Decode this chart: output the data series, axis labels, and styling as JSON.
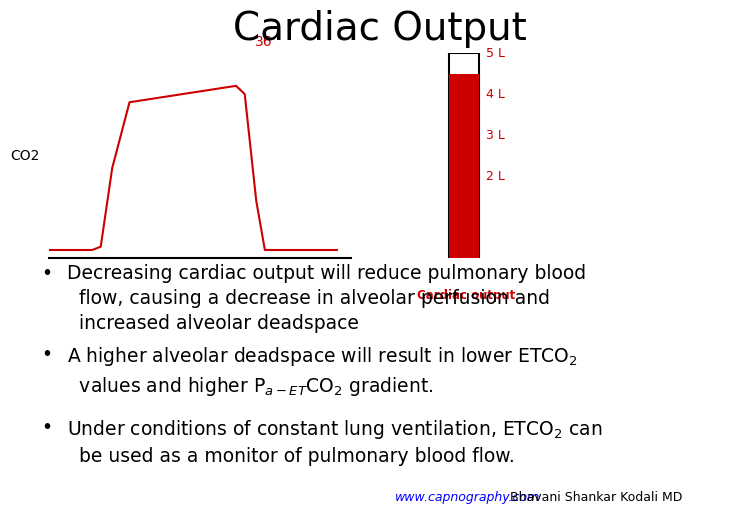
{
  "title": "Cardiac Output",
  "title_fontsize": 28,
  "title_font": "Arial",
  "bg_color": "#ffffff",
  "bullet_points": [
    {
      "main": "Decreasing cardiac output will reduce pulmonary blood\nflow, causing a decrease in alveolar perfusion and\nincreased alveolar deadspace",
      "subscripts": []
    },
    {
      "main": "A higher alveolar deadspace will result in lower ETCO₂\nvalues and higher Pₐ-ₑₜ CO₂ gradient.",
      "subscripts": []
    },
    {
      "main": "Under conditions of constant lung ventilation, ETCO₂ can\nbe used as a monitor of pulmonary blood flow.",
      "subscripts": []
    }
  ],
  "bullet_fontsize": 13.5,
  "footer_link": "www.capnography.com",
  "footer_text": " Bhavani Shankar Kodali MD",
  "footer_color_link": "#0000ff",
  "footer_color_text": "#000000",
  "footer_fontsize": 9,
  "capno_curve_color": "#cc0000",
  "capno_label_color": "#cc0000",
  "capno_axis_color": "#000000",
  "capno_value": "36",
  "capno_ylabel": "CO2",
  "blood_levels": [
    "5 L",
    "4 L",
    "3 L",
    "2 L"
  ],
  "blood_bar_color": "#cc0000",
  "cardiac_output_label": "Cardiac output",
  "cardiac_output_label_color": "#cc0000"
}
